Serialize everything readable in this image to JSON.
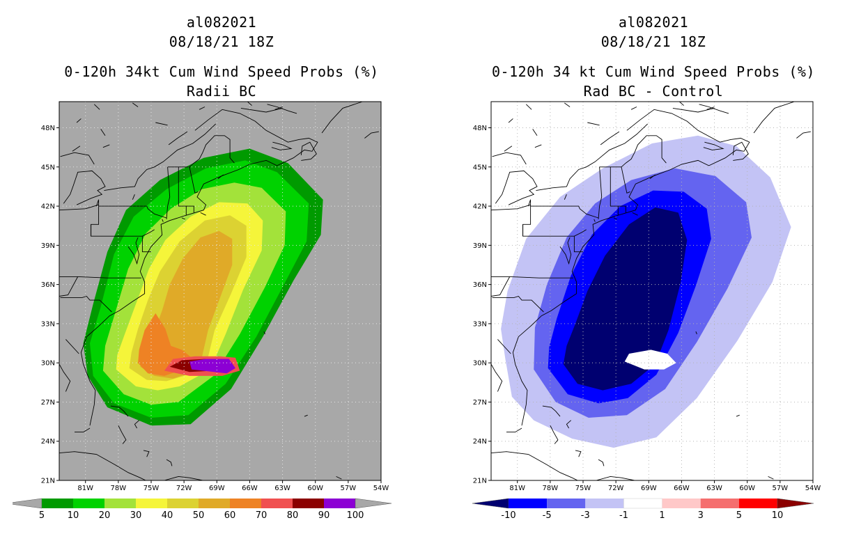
{
  "panels": [
    {
      "storm_id": "al082021",
      "datetime": "08/18/21 18Z",
      "product": "0-120h 34kt Cum Wind Speed Probs (%)",
      "subtitle": "Radii BC",
      "background": "#a8a8a8",
      "colorbar": {
        "colors": [
          "#009a00",
          "#00d200",
          "#a3e23a",
          "#f5f53a",
          "#dcd232",
          "#e0aa28",
          "#ee8224",
          "#f05050",
          "#8b0000",
          "#8c00d4"
        ],
        "labels": [
          "5",
          "10",
          "20",
          "30",
          "40",
          "50",
          "60",
          "70",
          "80",
          "90",
          "100"
        ]
      }
    },
    {
      "storm_id": "al082021",
      "datetime": "08/18/21 18Z",
      "product": "0-120h 34 kt Cum Wind Speed Probs (%)",
      "subtitle": "Rad BC - Control",
      "background": "#ffffff",
      "colorbar": {
        "colors": [
          "#000070",
          "#0000ff",
          "#6464f0",
          "#c3c3f5",
          "#ffffff",
          "#ffc8c8",
          "#f56e6e",
          "#ff0000",
          "#8b0000"
        ],
        "labels": [
          "-10",
          "-5",
          "-3",
          "-1",
          "1",
          "3",
          "5",
          "10"
        ]
      }
    }
  ],
  "axes": {
    "lon_ticks": [
      "81W",
      "78W",
      "75W",
      "72W",
      "69W",
      "66W",
      "63W",
      "60W",
      "57W",
      "54W"
    ],
    "lat_ticks": [
      "48N",
      "45N",
      "42N",
      "39N",
      "36N",
      "33N",
      "30N",
      "27N",
      "24N",
      "21N"
    ]
  }
}
